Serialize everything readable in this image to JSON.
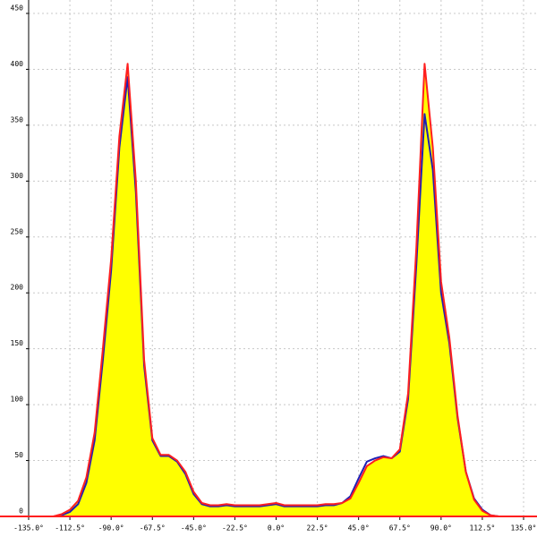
{
  "chart_data": {
    "type": "area",
    "x": [
      -135,
      -130.5,
      -126,
      -121.5,
      -117,
      -112.5,
      -108,
      -103.5,
      -99,
      -94.5,
      -90,
      -85.5,
      -81,
      -76.5,
      -72,
      -67.5,
      -63,
      -58.5,
      -54,
      -49.5,
      -45,
      -40.5,
      -36,
      -31.5,
      -27,
      -22.5,
      -18,
      -13.5,
      -9,
      -4.5,
      0,
      4.5,
      9,
      13.5,
      18,
      22.5,
      27,
      31.5,
      36,
      40.5,
      45,
      49.5,
      54,
      58.5,
      63,
      67.5,
      72,
      76.5,
      81,
      85.5,
      90,
      94.5,
      99,
      103.5,
      108,
      112.5,
      117,
      121.5,
      126,
      130.5,
      135
    ],
    "series": [
      {
        "color": "#1f1fb4",
        "fill": null,
        "values": [
          0,
          0,
          0,
          0,
          1,
          4,
          11,
          30,
          68,
          140,
          220,
          330,
          393,
          290,
          135,
          68,
          54,
          54,
          49,
          38,
          20,
          11,
          9,
          9,
          10,
          9,
          9,
          9,
          9,
          10,
          11,
          9,
          9,
          9,
          9,
          9,
          10,
          10,
          12,
          18,
          34,
          49,
          52,
          54,
          52,
          58,
          105,
          225,
          360,
          310,
          200,
          155,
          88,
          40,
          16,
          6,
          1,
          0,
          0,
          0,
          0
        ]
      },
      {
        "color": "#ff1f1f",
        "fill": "#ffff00",
        "values": [
          0,
          0,
          0,
          0,
          2,
          6,
          14,
          35,
          75,
          150,
          230,
          340,
          405,
          300,
          140,
          70,
          55,
          55,
          50,
          40,
          22,
          12,
          10,
          10,
          11,
          10,
          10,
          10,
          10,
          11,
          12,
          10,
          10,
          10,
          10,
          10,
          11,
          11,
          12,
          16,
          30,
          45,
          50,
          53,
          52,
          60,
          110,
          240,
          405,
          330,
          210,
          160,
          90,
          40,
          15,
          5,
          1,
          0,
          0,
          0,
          0
        ]
      }
    ],
    "xlim": [
      -135,
      135
    ],
    "xticks": [
      {
        "value": -135,
        "label": "-135.0°"
      },
      {
        "value": -112.5,
        "label": "-112.5°"
      },
      {
        "value": -90,
        "label": "-90.0°"
      },
      {
        "value": -67.5,
        "label": "-67.5°"
      },
      {
        "value": -45,
        "label": "-45.0°"
      },
      {
        "value": -22.5,
        "label": "-22.5°"
      },
      {
        "value": 0,
        "label": "0.0°"
      },
      {
        "value": 22.5,
        "label": "22.5°"
      },
      {
        "value": 45,
        "label": "45.0°"
      },
      {
        "value": 67.5,
        "label": "67.5°"
      },
      {
        "value": 90,
        "label": "90.0°"
      },
      {
        "value": 112.5,
        "label": "112.5°"
      },
      {
        "value": 135,
        "label": "135.0°"
      }
    ],
    "ylim": [
      0,
      450
    ],
    "yticks": [
      0,
      50,
      100,
      150,
      200,
      250,
      300,
      350,
      400,
      450
    ],
    "grid": true
  }
}
